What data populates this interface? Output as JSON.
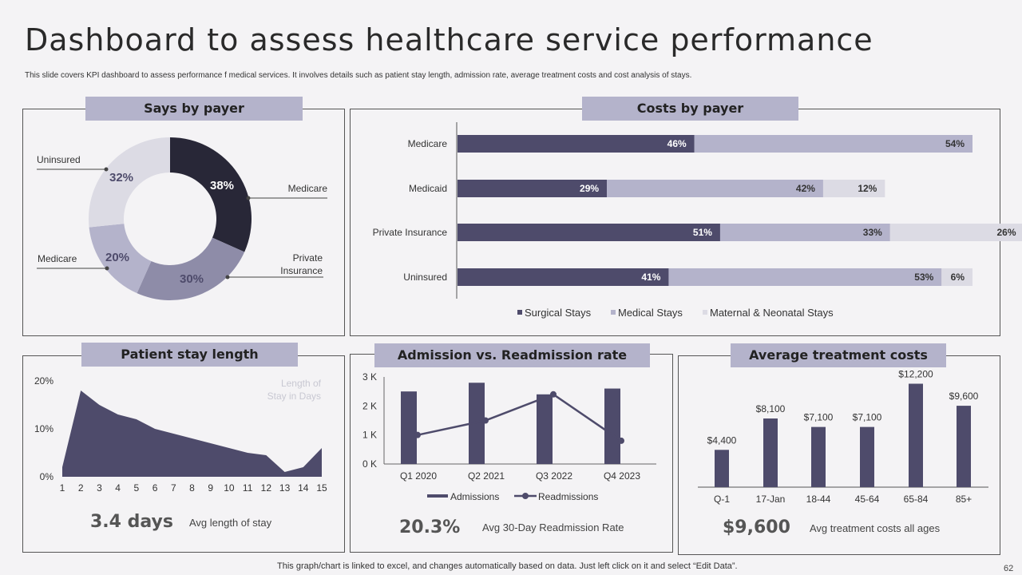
{
  "title": "Dashboard to assess healthcare service performance",
  "subtitle": "This slide covers KPI dashboard to assess performance f medical services. It involves details such as patient stay length, admission rate, average treatment costs and  cost analysis of stays.",
  "colors": {
    "dark": "#282737",
    "mid": "#8e8ca8",
    "light": "#dcdbe4",
    "bar": "#4e4b6b",
    "med": "#b4b3cb",
    "header": "#b4b3cb"
  },
  "panels": {
    "stays_by_payer": {
      "title": "Says by payer"
    },
    "costs_by_payer": {
      "title": "Costs by payer"
    },
    "patient_stay": {
      "title": "Patient stay length",
      "kpi_value": "3.4 days",
      "kpi_label": "Avg length of stay"
    },
    "admission": {
      "title": "Admission  vs. Readmission  rate",
      "kpi_value": "20.3%",
      "kpi_label": "Avg 30-Day  Readmission Rate"
    },
    "treatment": {
      "title": "Average treatment costs",
      "kpi_value": "$9,600",
      "kpi_label": "Avg treatment costs all ages"
    }
  },
  "chart_data": [
    {
      "id": "donut",
      "type": "pie",
      "title": "Says by payer",
      "slices": [
        {
          "label": "Medicare",
          "value": 38,
          "text": "38%",
          "color": "#282737"
        },
        {
          "label": "Private Insurance",
          "value": 30,
          "text": "30%",
          "color": "#8e8ca8"
        },
        {
          "label": "Medicare",
          "value": 20,
          "text": "20%",
          "color": "#b4b3cb"
        },
        {
          "label": "Uninsured",
          "value": 32,
          "text": "32%",
          "color": "#dcdbe4"
        }
      ]
    },
    {
      "id": "costs",
      "type": "bar",
      "orientation": "horizontal",
      "stacked": true,
      "title": "Costs by payer",
      "categories": [
        "Medicare",
        "Medicaid",
        "Private Insurance",
        "Uninsured"
      ],
      "series": [
        {
          "name": "Surgical Stays",
          "values": [
            46,
            29,
            51,
            41
          ],
          "labels": [
            "46%",
            "29%",
            "51%",
            "41%"
          ],
          "color": "#4e4b6b"
        },
        {
          "name": "Medical Stays",
          "values": [
            54,
            42,
            33,
            53
          ],
          "labels": [
            "54%",
            "42%",
            "33%",
            "53%"
          ],
          "color": "#b4b3cb"
        },
        {
          "name": "Maternal & Neonatal Stays",
          "values": [
            0,
            12,
            26,
            6
          ],
          "labels": [
            "",
            "12%",
            "26%",
            "6%"
          ],
          "color": "#dcdbe4"
        }
      ],
      "legend": "bottom"
    },
    {
      "id": "stay",
      "type": "area",
      "title": "Patient stay length",
      "x": [
        1,
        2,
        3,
        4,
        5,
        6,
        7,
        8,
        9,
        10,
        11,
        12,
        13,
        14,
        15
      ],
      "x_ticks": [
        "1",
        "2",
        "3",
        "4",
        "5",
        "6",
        "7",
        "8",
        "9",
        "10",
        "11",
        "12",
        "13",
        "14",
        "15"
      ],
      "values": [
        2,
        18,
        15,
        13,
        12,
        10,
        9,
        8,
        7,
        6,
        5,
        4.5,
        1,
        2,
        6
      ],
      "y_ticks": [
        "0%",
        "10%",
        "20%"
      ],
      "ylim": [
        0,
        20
      ],
      "series_name": "Length of Stay in Days",
      "series_name_lines": [
        "Length of",
        "Stay in Days"
      ]
    },
    {
      "id": "admission",
      "type": "bar",
      "title": "Admission vs. Readmission rate",
      "categories": [
        "Q1 2020",
        "Q2 2021",
        "Q3 2022",
        "Q4 2023"
      ],
      "series": [
        {
          "name": "Admissions",
          "type": "bar",
          "values": [
            2500,
            2800,
            2400,
            2600
          ]
        },
        {
          "name": "Readmissions",
          "type": "line",
          "values": [
            1000,
            1500,
            2400,
            800
          ]
        }
      ],
      "y_ticks": [
        "0 K",
        "1 K",
        "2 K",
        "3 K"
      ],
      "ylim": [
        0,
        3000
      ],
      "legend": "bottom"
    },
    {
      "id": "treatment",
      "type": "bar",
      "title": "Average treatment costs",
      "categories": [
        "Q-1",
        "17-Jan",
        "18-44",
        "45-64",
        "65-84",
        "85+"
      ],
      "values": [
        4400,
        8100,
        7100,
        7100,
        12200,
        9600
      ],
      "labels": [
        "$4,400",
        "$8,100",
        "$7,100",
        "$7,100",
        "$12,200",
        "$9,600"
      ],
      "ylim": [
        0,
        13000
      ]
    }
  ],
  "footer": "This graph/chart is linked to excel, and changes automatically based on data. Just left click on it and select “Edit Data”.",
  "page_number": "62"
}
